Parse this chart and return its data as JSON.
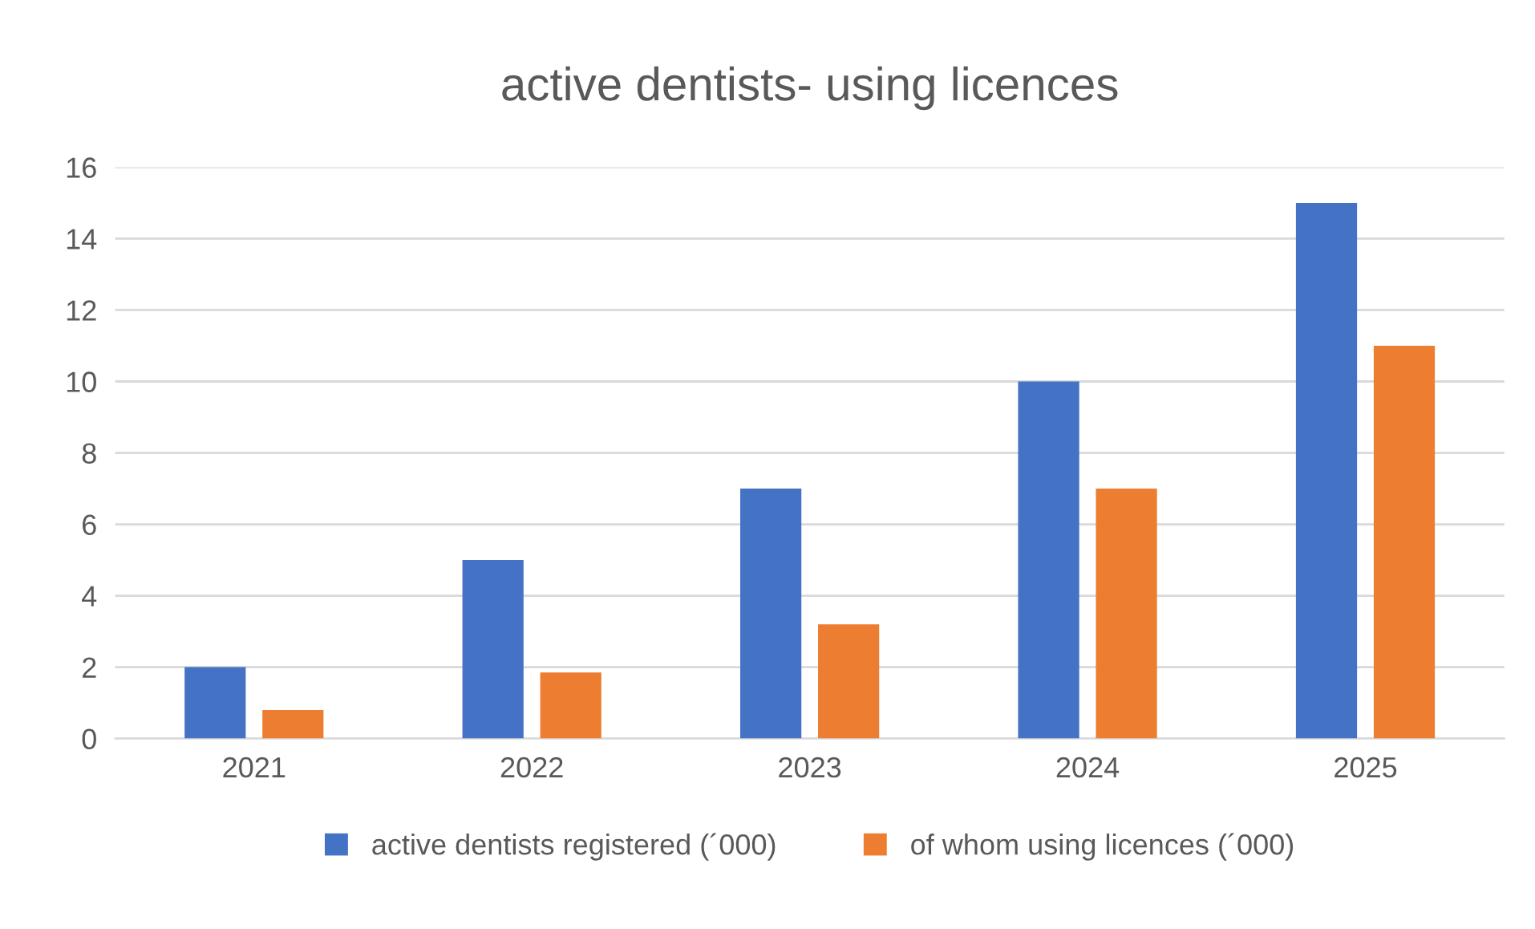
{
  "chart_data": {
    "type": "bar",
    "title": "active dentists- using licences",
    "categories": [
      "2021",
      "2022",
      "2023",
      "2024",
      "2025"
    ],
    "series": [
      {
        "name": "active dentists registered (´000)",
        "color": "#4472c4",
        "values": [
          2,
          5,
          7,
          10,
          15
        ]
      },
      {
        "name": "of whom using licences (´000)",
        "color": "#ed7d31",
        "values": [
          0.8,
          1.85,
          3.2,
          7,
          11
        ]
      }
    ],
    "ylim": [
      0,
      16
    ],
    "yticks": [
      0,
      2,
      4,
      6,
      8,
      10,
      12,
      14,
      16
    ],
    "grid": "y",
    "legend": "bottom"
  }
}
